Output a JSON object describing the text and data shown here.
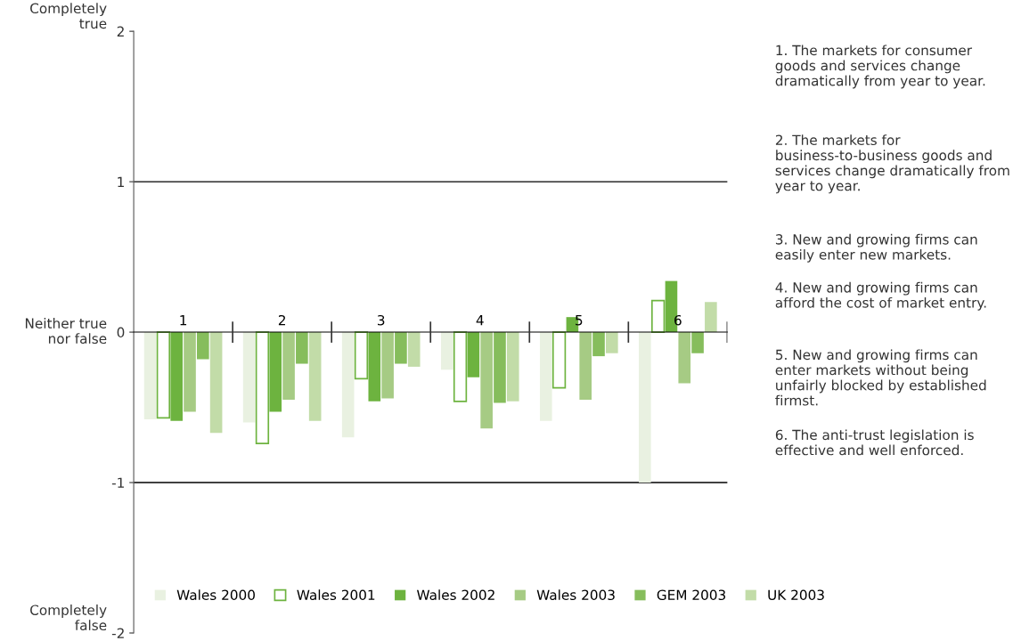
{
  "chart_data": {
    "type": "bar",
    "categories": [
      "1",
      "2",
      "3",
      "4",
      "5",
      "6"
    ],
    "series": [
      {
        "name": "Wales 2000",
        "color": "#e9f1e1",
        "values": [
          -0.58,
          -0.6,
          -0.7,
          -0.25,
          -0.59,
          -1.0
        ]
      },
      {
        "name": "Wales 2001",
        "color": "#ffffff",
        "values": [
          -0.57,
          -0.74,
          -0.31,
          -0.46,
          -0.37,
          0.21
        ]
      },
      {
        "name": "Wales 2002",
        "color": "#6db33f",
        "values": [
          -0.59,
          -0.53,
          -0.46,
          -0.3,
          0.1,
          0.34
        ]
      },
      {
        "name": "Wales 2003",
        "color": "#a6cb84",
        "values": [
          -0.53,
          -0.45,
          -0.44,
          -0.64,
          -0.45,
          -0.34
        ]
      },
      {
        "name": "GEM 2003",
        "color": "#86bd5c",
        "values": [
          -0.18,
          -0.21,
          -0.21,
          -0.47,
          -0.16,
          -0.14
        ]
      },
      {
        "name": "UK 2003",
        "color": "#c2dca8",
        "values": [
          -0.67,
          -0.59,
          -0.23,
          -0.46,
          -0.14,
          0.2
        ]
      }
    ],
    "ylim": [
      -2,
      2
    ],
    "yticks": [
      -2,
      -1,
      0,
      1,
      2
    ],
    "ref_lines": [
      {
        "axis": "y",
        "value": 1,
        "color": "#000000"
      },
      {
        "axis": "y",
        "value": -1,
        "color": "#000000"
      }
    ],
    "legend": "bottom",
    "annotations": [
      "Completely true",
      "Neither true nor false",
      "Completely false",
      "1. The markets for consumer goods and services change dramatically from year to year.",
      "2. The markets for business-to-business goods and services change dramatically from year to year.",
      "3. New and growing firms can easily enter new markets.",
      "4. New and growing firms can afford the cost of market entry.",
      "5. New and growing firms can enter markets without being unfairly blocked by established firmst.",
      "6. The anti-trust legislation is effective and well enforced."
    ]
  }
}
